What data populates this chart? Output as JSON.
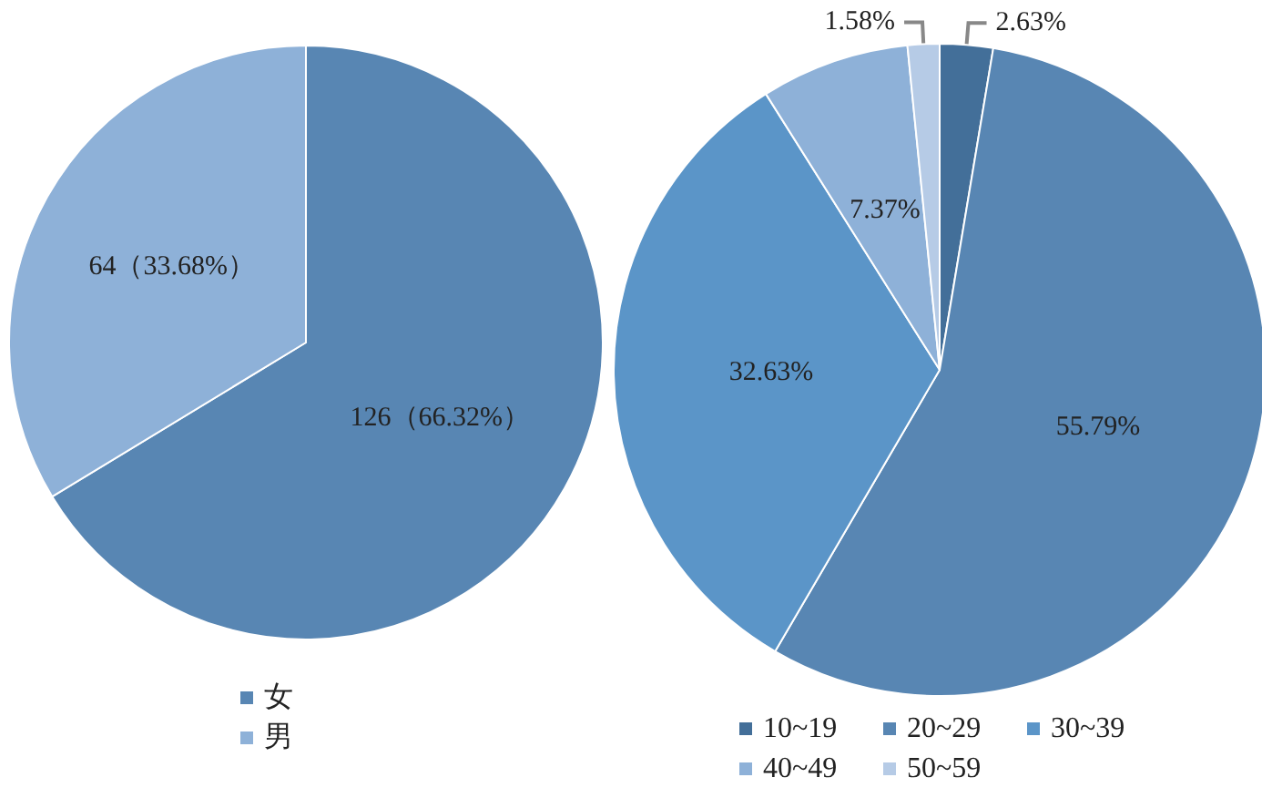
{
  "chart_data": [
    {
      "type": "pie",
      "categories": [
        "女",
        "男"
      ],
      "values": [
        126,
        64
      ],
      "colors": [
        "#5886b3",
        "#8eb1d8"
      ],
      "value_labels": [
        "126（66.32%）",
        "64（33.68%）"
      ],
      "legend": "bottom"
    },
    {
      "type": "pie",
      "categories": [
        "10~19",
        "20~29",
        "30~39",
        "40~49",
        "50~59"
      ],
      "values": [
        2.63,
        55.79,
        32.63,
        7.37,
        1.58
      ],
      "colors": [
        "#436f99",
        "#5886b3",
        "#5b95c8",
        "#8eb1d8",
        "#b6cbe6"
      ],
      "value_labels": [
        "2.63%",
        "55.79%",
        "32.63%",
        "7.37%",
        "1.58%"
      ],
      "legend": "bottom"
    }
  ]
}
